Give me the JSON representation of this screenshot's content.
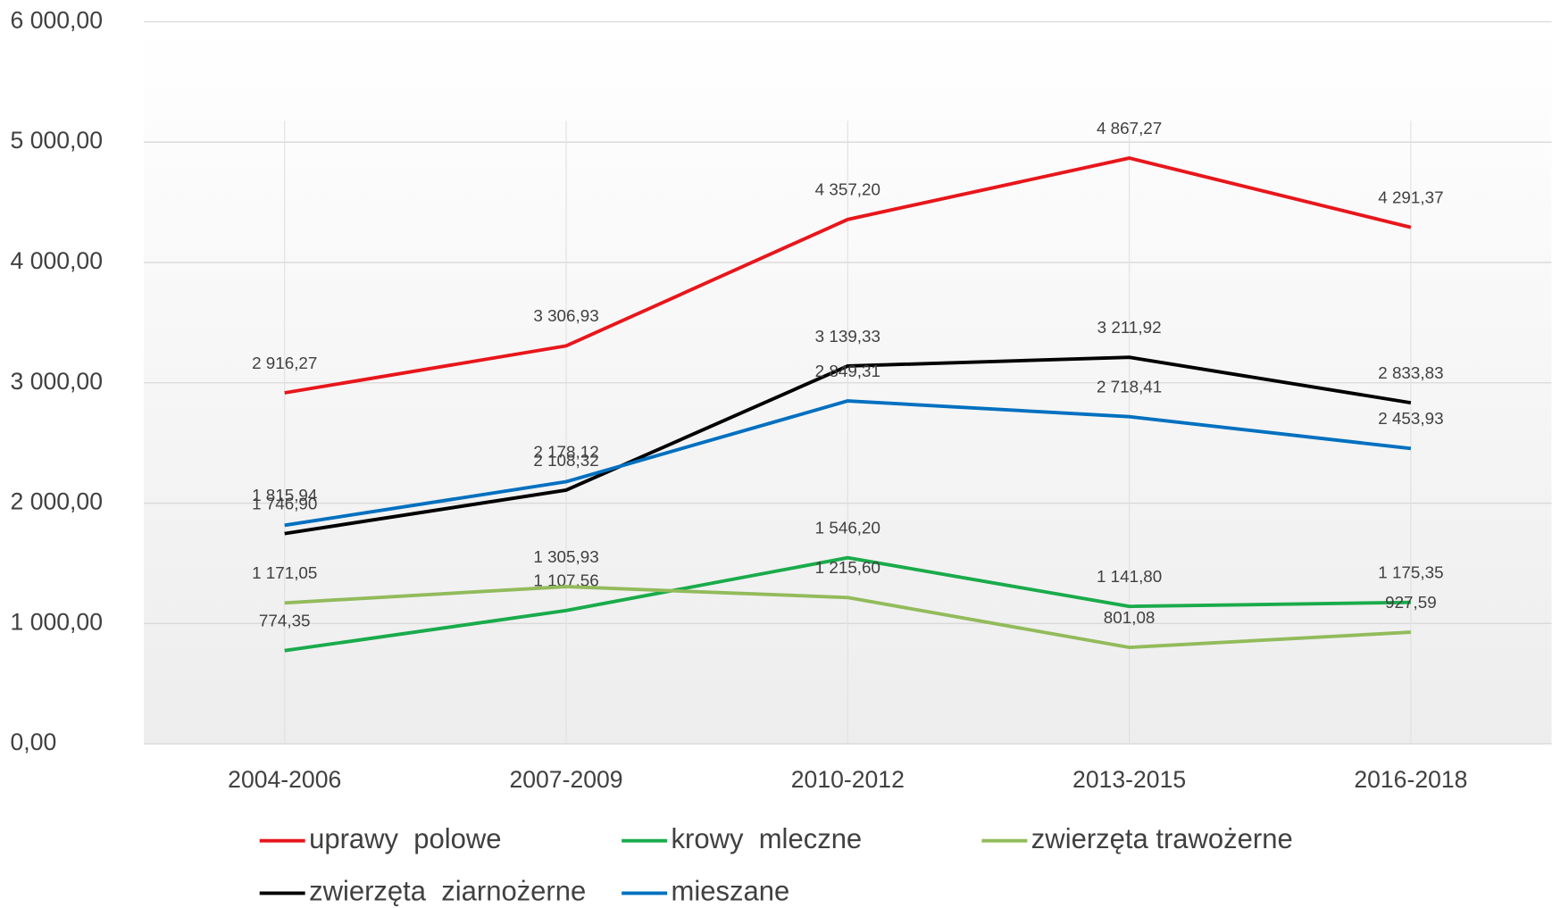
{
  "chart_data": {
    "type": "line",
    "categories": [
      "2004-2006",
      "2007-2009",
      "2010-2012",
      "2013-2015",
      "2016-2018"
    ],
    "series": [
      {
        "name": "uprawy  polowe",
        "color": "#e8161b",
        "values": [
          2916.27,
          3306.93,
          4357.2,
          4867.27,
          4291.37
        ],
        "value_labels": [
          "2 916,27",
          "3 306,93",
          "4 357,20",
          "4 867,27",
          "4 291,37"
        ]
      },
      {
        "name": "krowy  mleczne",
        "color": "#1aab4b",
        "values": [
          774.35,
          1107.56,
          1546.2,
          1141.8,
          1175.35
        ],
        "value_labels": [
          "774,35",
          "1 107,56",
          "1 546,20",
          "1 141,80",
          "1 175,35"
        ]
      },
      {
        "name": "zwierzęta trawożerne",
        "color": "#92bb5b",
        "values": [
          1171.05,
          1305.93,
          1215.6,
          801.08,
          927.59
        ],
        "value_labels": [
          "1 171,05",
          "1 305,93",
          "1 215,60",
          "801,08",
          "927,59"
        ]
      },
      {
        "name": "zwierzęta  ziarnożerne",
        "color": "#000000",
        "values": [
          1746.9,
          2108.32,
          3139.33,
          3211.92,
          2833.83
        ],
        "value_labels": [
          "1 746,90",
          "2 108,32",
          "3 139,33",
          "3 211,92",
          "2 833,83"
        ]
      },
      {
        "name": "mieszane",
        "color": "#0070c0",
        "values": [
          1815.94,
          2178.12,
          2849.31,
          2718.41,
          2453.93
        ],
        "value_labels": [
          "1 815,94",
          "2 178,12",
          "2 849,31",
          "2 718,41",
          "2 453,93"
        ]
      }
    ],
    "ylim": [
      0,
      6000
    ],
    "yticks": [
      {
        "value": 0,
        "label": "0,00"
      },
      {
        "value": 1000,
        "label": "1 000,00"
      },
      {
        "value": 2000,
        "label": "2 000,00"
      },
      {
        "value": 3000,
        "label": "3 000,00"
      },
      {
        "value": 4000,
        "label": "4 000,00"
      },
      {
        "value": 5000,
        "label": "5 000,00"
      },
      {
        "value": 6000,
        "label": "6 000,00"
      }
    ],
    "grid": true
  }
}
